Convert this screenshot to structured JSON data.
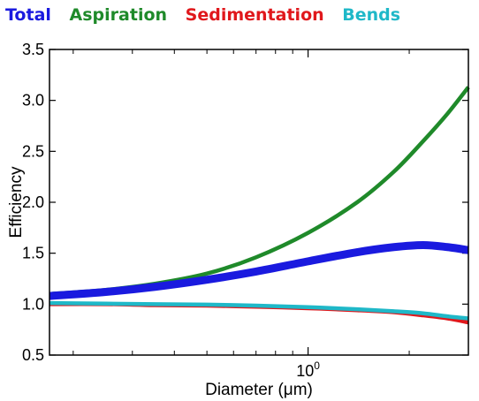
{
  "chart_data": {
    "type": "line",
    "xlabel": "Diameter (μm)",
    "ylabel": "Efficiency",
    "xscale": "log",
    "xlim": [
      0.17,
      3.0
    ],
    "ylim": [
      0.5,
      3.5
    ],
    "yticks": [
      "0.5",
      "1.0",
      "1.5",
      "2.0",
      "2.5",
      "3.0",
      "3.5"
    ],
    "xtick_label": {
      "base": "10",
      "exponent": "0",
      "value": 1
    },
    "legend_placement": "top, above plot",
    "grid": false,
    "x": [
      0.17,
      0.25,
      0.35,
      0.5,
      0.7,
      1.0,
      1.4,
      1.8,
      2.2,
      2.6,
      3.0
    ],
    "series": [
      {
        "name": "Total",
        "color": "#1a1adf",
        "values": [
          1.08,
          1.12,
          1.17,
          1.24,
          1.32,
          1.42,
          1.51,
          1.56,
          1.58,
          1.56,
          1.53
        ]
      },
      {
        "name": "Aspiration",
        "color": "#1f8a2a",
        "values": [
          1.1,
          1.14,
          1.2,
          1.3,
          1.46,
          1.7,
          2.0,
          2.3,
          2.6,
          2.87,
          3.13
        ]
      },
      {
        "name": "Sedimentation",
        "color": "#e0181c",
        "values": [
          1.0,
          1.0,
          0.99,
          0.985,
          0.975,
          0.96,
          0.94,
          0.92,
          0.89,
          0.86,
          0.82
        ]
      },
      {
        "name": "Bends",
        "color": "#1fb8c8",
        "values": [
          1.01,
          1.005,
          1.0,
          0.995,
          0.985,
          0.97,
          0.95,
          0.93,
          0.91,
          0.88,
          0.86
        ]
      }
    ]
  }
}
